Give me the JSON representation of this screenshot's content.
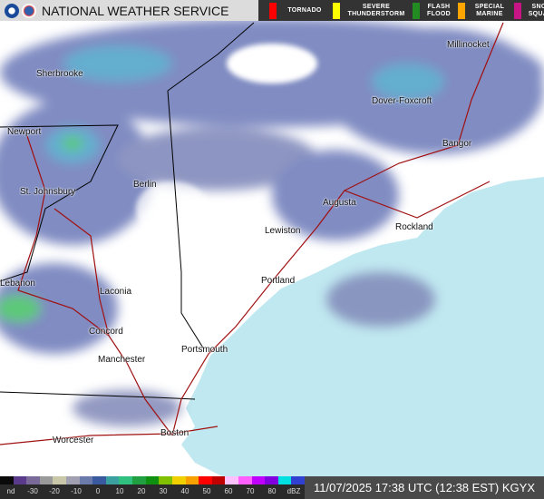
{
  "header": {
    "title": "NATIONAL WEATHER SERVICE",
    "logos": [
      "noaa-logo",
      "nws-logo"
    ]
  },
  "warnings": [
    {
      "label": "TORNADO",
      "color": "#ff0000"
    },
    {
      "label": "SEVERE THUNDERSTORM",
      "color": "#ffff00"
    },
    {
      "label": "FLASH FLOOD",
      "color": "#228b22"
    },
    {
      "label": "SPECIAL MARINE",
      "color": "#ffa500"
    },
    {
      "label": "SNOW SQUALL",
      "color": "#c71585"
    }
  ],
  "cities": [
    "Sherbrooke",
    "Millinocket",
    "Dover-Foxcroft",
    "Newport",
    "Bangor",
    "St. Johnsbury",
    "Berlin",
    "Augusta",
    "Lewiston",
    "Rockland",
    "Portland",
    "Lebanon",
    "Laconia",
    "Concord",
    "Portsmouth",
    "Manchester",
    "Worcester",
    "Boston"
  ],
  "colorbar": {
    "ticks": [
      "nd",
      "-30",
      "-20",
      "-10",
      "0",
      "10",
      "20",
      "30",
      "40",
      "50",
      "60",
      "70",
      "80",
      "dBZ"
    ],
    "colors": [
      "#0a0a0a",
      "#5a3a8a",
      "#7a6a9a",
      "#9a9a9a",
      "#c8c8a8",
      "#a0a0b0",
      "#6a7aaa",
      "#3a5aa0",
      "#3aa0a0",
      "#30c080",
      "#20a040",
      "#109010",
      "#80c000",
      "#f0d000",
      "#f8a000",
      "#ff0000",
      "#c00000",
      "#ffc0ff",
      "#ff60ff",
      "#c000ff",
      "#8000e0",
      "#00e0e0",
      "#3040d0"
    ]
  },
  "timestamp": "11/07/2025 17:38 UTC (12:38 EST) KGYX",
  "map_colors": {
    "land": "#ffffff",
    "ocean": "#c0e8f0",
    "radar_light": "#6a78b8",
    "radar_medium": "#4aa0c8",
    "radar_heavy": "#40c060",
    "roads": "#a01010",
    "borders": "#000000"
  }
}
